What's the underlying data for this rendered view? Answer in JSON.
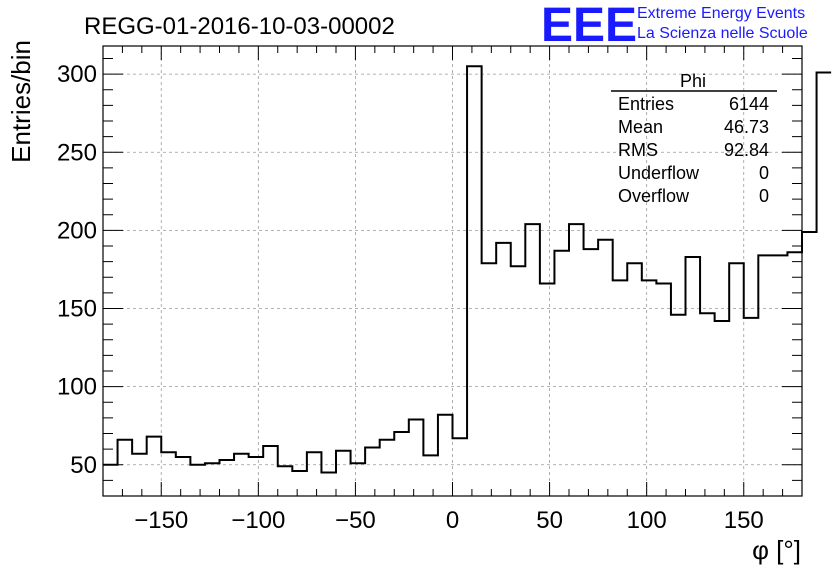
{
  "header": {
    "title": "REGG-01-2016-10-03-00002",
    "logo_text": "EEE",
    "logo_line1": "Extreme Energy Events",
    "logo_line2": "La Scienza nelle Scuole",
    "logo_color": "#1a1aff"
  },
  "stats": {
    "name": "Phi",
    "rows": [
      {
        "label": "Entries",
        "value": "6144"
      },
      {
        "label": "Mean",
        "value": "46.73"
      },
      {
        "label": "RMS",
        "value": "92.84"
      },
      {
        "label": "Underflow",
        "value": "0"
      },
      {
        "label": "Overflow",
        "value": "0"
      }
    ]
  },
  "chart_data": {
    "type": "histogram",
    "title": "REGG-01-2016-10-03-00002",
    "xlabel": "φ [°]",
    "ylabel": "Entries/bin",
    "xlim": [
      -180,
      180
    ],
    "ylim": [
      30,
      318
    ],
    "bin_width": 7.5,
    "grid": true,
    "xticks": [
      -150,
      -100,
      -50,
      0,
      50,
      100,
      150
    ],
    "xtick_labels": [
      "−150",
      "−100",
      "−50",
      "0",
      "50",
      "100",
      "150"
    ],
    "yticks": [
      50,
      100,
      150,
      200,
      250,
      300
    ],
    "ytick_labels": [
      "50",
      "100",
      "150",
      "200",
      "250",
      "300"
    ],
    "values": [
      50,
      66,
      57,
      68,
      58,
      55,
      50,
      51,
      53,
      57,
      55,
      62,
      49,
      46,
      58,
      45,
      59,
      51,
      61,
      66,
      71,
      79,
      56,
      82,
      67,
      305,
      179,
      192,
      177,
      204,
      166,
      187,
      204,
      188,
      194,
      168,
      179,
      168,
      166,
      146,
      183,
      147,
      142,
      179,
      144,
      184,
      184,
      186,
      199,
      301
    ]
  }
}
